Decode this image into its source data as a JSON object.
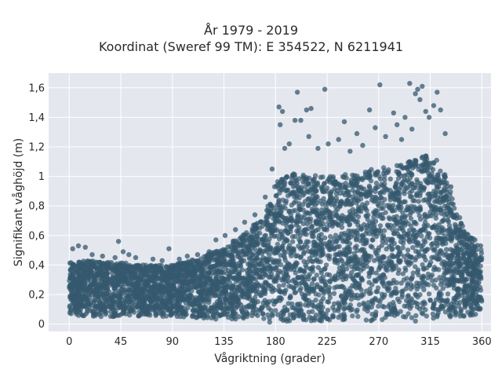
{
  "chart_data": {
    "type": "scatter",
    "title": "År 1979 - 2019",
    "subtitle": "Koordinat (Sweref 99 TM): E 354522, N 6211941",
    "xlabel": "Vågriktning (grader)",
    "ylabel": "Signifikant våghöjd (m)",
    "xlim": [
      -18,
      368
    ],
    "ylim": [
      -0.05,
      1.7
    ],
    "x_ticks": [
      0,
      45,
      90,
      135,
      180,
      225,
      270,
      315,
      360
    ],
    "x_tick_labels": [
      "0",
      "45",
      "90",
      "135",
      "180",
      "225",
      "270",
      "315",
      "360"
    ],
    "y_ticks": [
      0,
      0.2,
      0.4,
      0.6,
      0.8,
      1.0,
      1.2,
      1.4,
      1.6
    ],
    "y_tick_labels": [
      "0",
      "0,2",
      "0,4",
      "0,6",
      "0,8",
      "1",
      "1,2",
      "1,4",
      "1,6"
    ],
    "grid": true,
    "marker_color": "#34586e",
    "plot_background": "#e5e7ef",
    "envelope": {
      "x": [
        0,
        20,
        45,
        60,
        90,
        110,
        135,
        150,
        165,
        175,
        180,
        195,
        225,
        250,
        270,
        290,
        300,
        315,
        325,
        335,
        345,
        355,
        360
      ],
      "y_min": [
        0.06,
        0.05,
        0.05,
        0.05,
        0.05,
        0.04,
        0.03,
        0.03,
        0.02,
        0.01,
        0.01,
        0.01,
        0.02,
        0.02,
        0.02,
        0.02,
        0.02,
        0.02,
        0.03,
        0.04,
        0.05,
        0.06,
        0.07
      ],
      "y_max": [
        0.42,
        0.43,
        0.42,
        0.4,
        0.4,
        0.44,
        0.52,
        0.6,
        0.7,
        0.82,
        0.96,
        1.02,
        1.0,
        1.02,
        1.06,
        1.08,
        1.12,
        1.15,
        1.08,
        0.85,
        0.63,
        0.56,
        0.5
      ]
    },
    "outliers": [
      {
        "x": 3,
        "y": 0.51
      },
      {
        "x": 8,
        "y": 0.53
      },
      {
        "x": 14,
        "y": 0.52
      },
      {
        "x": 20,
        "y": 0.47
      },
      {
        "x": 29,
        "y": 0.46
      },
      {
        "x": 40,
        "y": 0.45
      },
      {
        "x": 43,
        "y": 0.56
      },
      {
        "x": 47,
        "y": 0.49
      },
      {
        "x": 52,
        "y": 0.47
      },
      {
        "x": 58,
        "y": 0.45
      },
      {
        "x": 73,
        "y": 0.44
      },
      {
        "x": 81,
        "y": 0.43
      },
      {
        "x": 87,
        "y": 0.51
      },
      {
        "x": 96,
        "y": 0.44
      },
      {
        "x": 103,
        "y": 0.46
      },
      {
        "x": 112,
        "y": 0.47
      },
      {
        "x": 122,
        "y": 0.49
      },
      {
        "x": 128,
        "y": 0.57
      },
      {
        "x": 136,
        "y": 0.6
      },
      {
        "x": 145,
        "y": 0.64
      },
      {
        "x": 153,
        "y": 0.69
      },
      {
        "x": 162,
        "y": 0.74
      },
      {
        "x": 171,
        "y": 0.86
      },
      {
        "x": 177,
        "y": 1.05
      },
      {
        "x": 183,
        "y": 1.47
      },
      {
        "x": 184,
        "y": 1.35
      },
      {
        "x": 186,
        "y": 1.44
      },
      {
        "x": 188,
        "y": 1.19
      },
      {
        "x": 192,
        "y": 1.22
      },
      {
        "x": 197,
        "y": 1.38
      },
      {
        "x": 199,
        "y": 1.57
      },
      {
        "x": 202,
        "y": 1.38
      },
      {
        "x": 207,
        "y": 1.45
      },
      {
        "x": 209,
        "y": 1.27
      },
      {
        "x": 211,
        "y": 1.46
      },
      {
        "x": 217,
        "y": 1.19
      },
      {
        "x": 223,
        "y": 1.59
      },
      {
        "x": 226,
        "y": 1.22
      },
      {
        "x": 235,
        "y": 1.25
      },
      {
        "x": 240,
        "y": 1.37
      },
      {
        "x": 245,
        "y": 1.17
      },
      {
        "x": 251,
        "y": 1.29
      },
      {
        "x": 256,
        "y": 1.21
      },
      {
        "x": 262,
        "y": 1.45
      },
      {
        "x": 267,
        "y": 1.33
      },
      {
        "x": 271,
        "y": 1.62
      },
      {
        "x": 276,
        "y": 1.27
      },
      {
        "x": 283,
        "y": 1.43
      },
      {
        "x": 286,
        "y": 1.35
      },
      {
        "x": 290,
        "y": 1.25
      },
      {
        "x": 293,
        "y": 1.4
      },
      {
        "x": 297,
        "y": 1.63
      },
      {
        "x": 299,
        "y": 1.32
      },
      {
        "x": 302,
        "y": 1.56
      },
      {
        "x": 304,
        "y": 1.59
      },
      {
        "x": 306,
        "y": 1.52
      },
      {
        "x": 308,
        "y": 1.61
      },
      {
        "x": 311,
        "y": 1.44
      },
      {
        "x": 314,
        "y": 1.4
      },
      {
        "x": 318,
        "y": 1.48
      },
      {
        "x": 321,
        "y": 1.57
      },
      {
        "x": 324,
        "y": 1.45
      },
      {
        "x": 328,
        "y": 1.29
      },
      {
        "x": 333,
        "y": 0.93
      },
      {
        "x": 338,
        "y": 0.74
      },
      {
        "x": 342,
        "y": 0.68
      },
      {
        "x": 347,
        "y": 0.61
      },
      {
        "x": 354,
        "y": 0.57
      },
      {
        "x": 359,
        "y": 0.53
      }
    ]
  }
}
